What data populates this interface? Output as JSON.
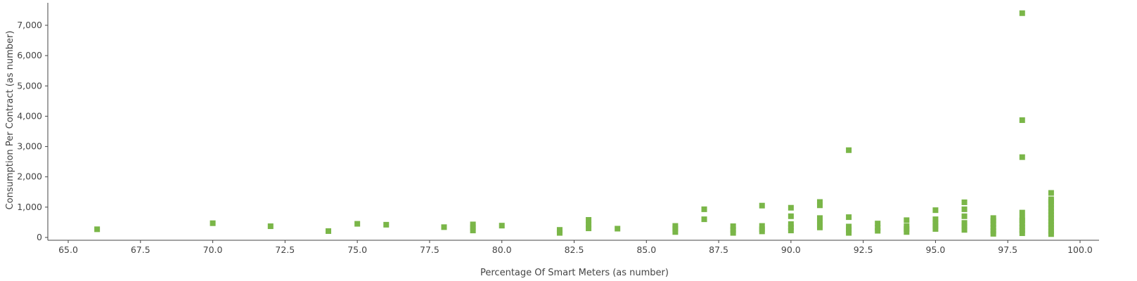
{
  "chart_data": {
    "type": "scatter",
    "xlabel": "Percentage Of Smart Meters (as number)",
    "ylabel": "Consumption Per Contract (as number)",
    "xlim": [
      64.5,
      100.7
    ],
    "ylim": [
      0,
      7800
    ],
    "xticks": [
      "65.0",
      "67.5",
      "70.0",
      "72.5",
      "75.0",
      "77.5",
      "80.0",
      "82.5",
      "85.0",
      "87.5",
      "90.0",
      "92.5",
      "95.0",
      "97.5",
      "100.0"
    ],
    "yticks": [
      "0",
      "1,000",
      "2,000",
      "3,000",
      "4,000",
      "5,000",
      "6,000",
      "7,000"
    ],
    "marker": "square",
    "color": "#7ab648",
    "grid": false,
    "points": [
      [
        66,
        270
      ],
      [
        70,
        470
      ],
      [
        72,
        370
      ],
      [
        74,
        210
      ],
      [
        75,
        450
      ],
      [
        76,
        420
      ],
      [
        78,
        340
      ],
      [
        79,
        230
      ],
      [
        79,
        330
      ],
      [
        79,
        430
      ],
      [
        80,
        390
      ],
      [
        82,
        150
      ],
      [
        82,
        250
      ],
      [
        83,
        300
      ],
      [
        83,
        420
      ],
      [
        83,
        580
      ],
      [
        84,
        290
      ],
      [
        86,
        180
      ],
      [
        86,
        290
      ],
      [
        86,
        380
      ],
      [
        87,
        600
      ],
      [
        87,
        930
      ],
      [
        88,
        150
      ],
      [
        88,
        250
      ],
      [
        88,
        370
      ],
      [
        89,
        200
      ],
      [
        89,
        270
      ],
      [
        89,
        380
      ],
      [
        89,
        1050
      ],
      [
        90,
        230
      ],
      [
        90,
        330
      ],
      [
        90,
        440
      ],
      [
        90,
        700
      ],
      [
        90,
        980
      ],
      [
        91,
        330
      ],
      [
        91,
        420
      ],
      [
        91,
        530
      ],
      [
        91,
        640
      ],
      [
        91,
        1060
      ],
      [
        91,
        1170
      ],
      [
        92,
        150
      ],
      [
        92,
        250
      ],
      [
        92,
        360
      ],
      [
        92,
        670
      ],
      [
        92,
        2880
      ],
      [
        93,
        220
      ],
      [
        93,
        320
      ],
      [
        93,
        460
      ],
      [
        94,
        180
      ],
      [
        94,
        280
      ],
      [
        94,
        370
      ],
      [
        94,
        570
      ],
      [
        95,
        280
      ],
      [
        95,
        380
      ],
      [
        95,
        480
      ],
      [
        95,
        600
      ],
      [
        95,
        900
      ],
      [
        96,
        250
      ],
      [
        96,
        360
      ],
      [
        96,
        480
      ],
      [
        96,
        700
      ],
      [
        96,
        930
      ],
      [
        96,
        1160
      ],
      [
        97,
        120
      ],
      [
        97,
        220
      ],
      [
        97,
        330
      ],
      [
        97,
        440
      ],
      [
        97,
        550
      ],
      [
        97,
        640
      ],
      [
        98,
        140
      ],
      [
        98,
        240
      ],
      [
        98,
        340
      ],
      [
        98,
        450
      ],
      [
        98,
        560
      ],
      [
        98,
        640
      ],
      [
        98,
        820
      ],
      [
        98,
        2650
      ],
      [
        98,
        3870
      ],
      [
        98,
        7400
      ],
      [
        99,
        110
      ],
      [
        99,
        210
      ],
      [
        99,
        320
      ],
      [
        99,
        420
      ],
      [
        99,
        530
      ],
      [
        99,
        640
      ],
      [
        99,
        750
      ],
      [
        99,
        860
      ],
      [
        99,
        970
      ],
      [
        99,
        1080
      ],
      [
        99,
        1190
      ],
      [
        99,
        1260
      ],
      [
        99,
        1470
      ]
    ]
  }
}
